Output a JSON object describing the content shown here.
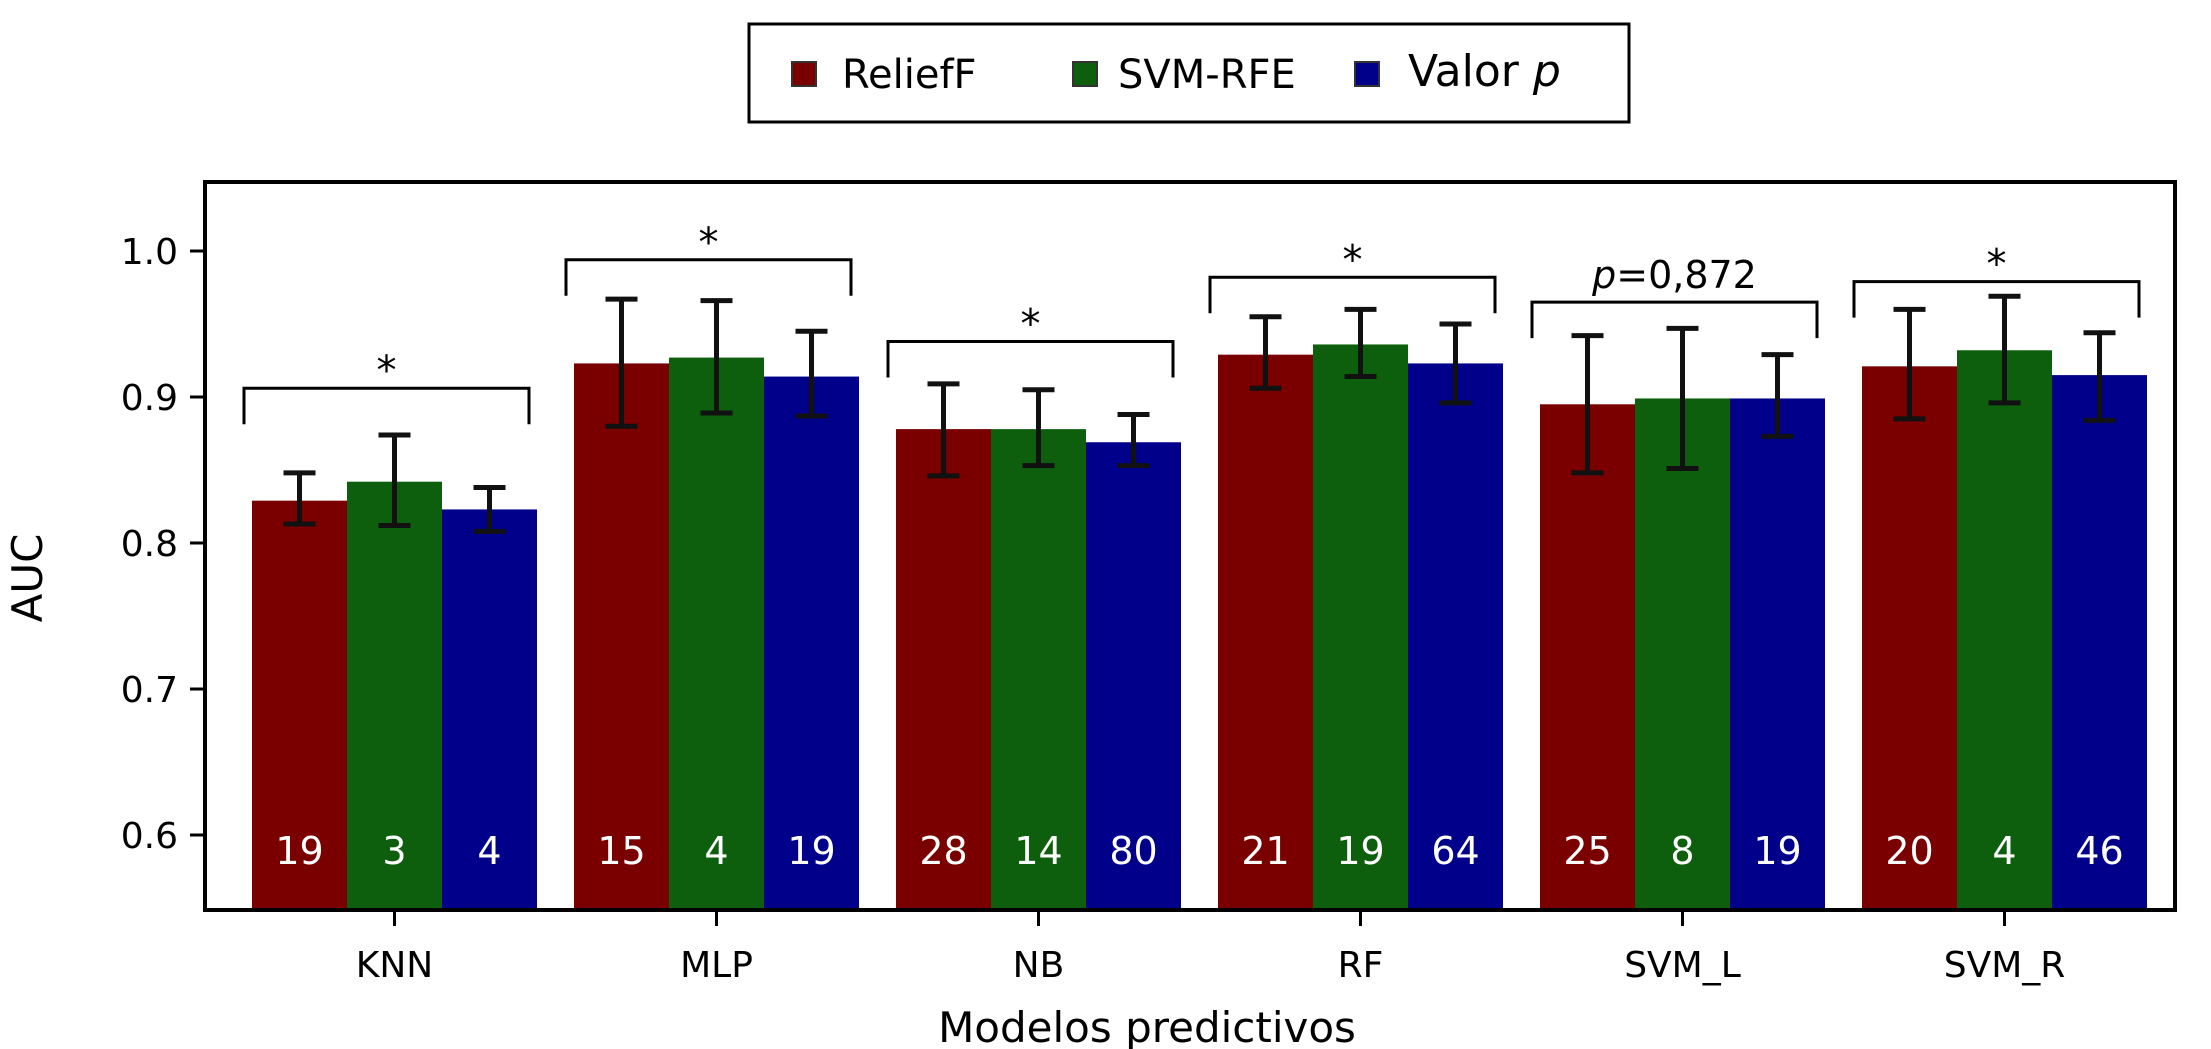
{
  "chart_data": {
    "type": "bar",
    "title": "",
    "xlabel": "Modelos predictivos",
    "ylabel": "AUC",
    "ylim": [
      0.55,
      1.02
    ],
    "yticks": [
      "0.6",
      "0.7",
      "0.8",
      "0.9",
      "1.0"
    ],
    "grid": false,
    "legend_position": "top-center",
    "categories": [
      "KNN",
      "MLP",
      "NB",
      "RF",
      "SVM_L",
      "SVM_R"
    ],
    "series": [
      {
        "name": "ReliefF",
        "color": "#7a0000",
        "values": [
          0.829,
          0.923,
          0.878,
          0.929,
          0.895,
          0.921
        ],
        "err_low": [
          0.813,
          0.88,
          0.846,
          0.906,
          0.848,
          0.885
        ],
        "err_high": [
          0.848,
          0.967,
          0.909,
          0.955,
          0.942,
          0.96
        ],
        "counts": [
          "19",
          "15",
          "28",
          "21",
          "25",
          "20"
        ]
      },
      {
        "name": "SVM-RFE",
        "color": "#0d5f0d",
        "values": [
          0.842,
          0.927,
          0.878,
          0.936,
          0.899,
          0.932
        ],
        "err_low": [
          0.812,
          0.889,
          0.853,
          0.914,
          0.851,
          0.896
        ],
        "err_high": [
          0.874,
          0.966,
          0.905,
          0.96,
          0.947,
          0.969
        ],
        "counts": [
          "3",
          "4",
          "14",
          "19",
          "8",
          "4"
        ]
      },
      {
        "name": "Valor p",
        "color": "#00008b",
        "values": [
          0.823,
          0.914,
          0.869,
          0.923,
          0.899,
          0.915
        ],
        "err_low": [
          0.808,
          0.887,
          0.853,
          0.896,
          0.873,
          0.884
        ],
        "err_high": [
          0.838,
          0.945,
          0.888,
          0.95,
          0.929,
          0.944
        ],
        "counts": [
          "4",
          "19",
          "80",
          "64",
          "19",
          "46"
        ]
      }
    ],
    "annotations": [
      {
        "category": "KNN",
        "label": "*",
        "bracket_y": 0.906
      },
      {
        "category": "MLP",
        "label": "*",
        "bracket_y": 0.994
      },
      {
        "category": "NB",
        "label": "*",
        "bracket_y": 0.938
      },
      {
        "category": "RF",
        "label": "*",
        "bracket_y": 0.982
      },
      {
        "category": "SVM_L",
        "label": "p=0,872",
        "italic_prefix": "p",
        "bracket_y": 0.965
      },
      {
        "category": "SVM_R",
        "label": "*",
        "bracket_y": 0.979
      }
    ]
  }
}
